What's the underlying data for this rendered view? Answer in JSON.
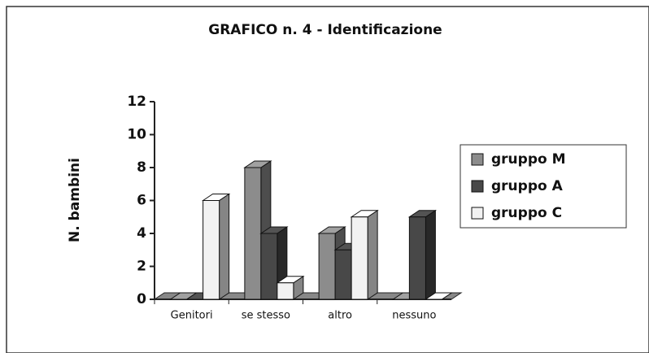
{
  "chart_data": {
    "type": "bar3d",
    "title": "GRAFICO n. 4 - Identificazione",
    "y_label": "N. bambini",
    "categories": [
      "Genitori",
      "se stesso",
      "altro",
      "nessuno"
    ],
    "series": [
      {
        "name": "gruppo M",
        "color": "#8c8c8c",
        "values": [
          0,
          8,
          4,
          0
        ]
      },
      {
        "name": "gruppo A",
        "color": "#484848",
        "values": [
          0,
          4,
          3,
          5
        ]
      },
      {
        "name": "gruppo C",
        "color": "#f2f2f2",
        "values": [
          6,
          1,
          5,
          0
        ]
      }
    ],
    "ylim": [
      0,
      12
    ],
    "yticks": [
      0,
      2,
      4,
      6,
      8,
      10,
      12
    ],
    "legend": "right"
  }
}
